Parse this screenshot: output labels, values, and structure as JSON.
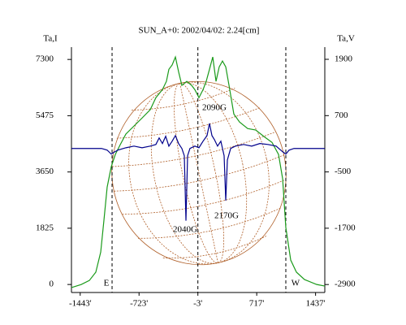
{
  "chart_data": {
    "type": "line",
    "title": "SUN_A+0: 2002/04/02: 2.24[cm]",
    "ylabel": "Ta,I",
    "y2label": "Ta,V",
    "xlim": [
      -1550,
      1550
    ],
    "ylim": [
      -260,
      7700
    ],
    "y2lim": [
      -3070,
      2160
    ],
    "xticks": [
      {
        "value": -1443,
        "label": "-1443'"
      },
      {
        "value": -723,
        "label": "-723'"
      },
      {
        "value": -3,
        "label": "-3'"
      },
      {
        "value": 717,
        "label": "717'"
      },
      {
        "value": 1437,
        "label": "1437'"
      }
    ],
    "yticks": [
      0,
      1825,
      3650,
      5475,
      7300
    ],
    "y2ticks": [
      -2900,
      -1700,
      -500,
      700,
      1900
    ],
    "vlines": [
      -1053,
      -3,
      1073
    ],
    "series": [
      {
        "name": "Ta,I",
        "color": "#1a9a1a",
        "x": [
          -1550,
          -1431,
          -1331,
          -1252,
          -1192,
          -1152,
          -1113,
          -1063,
          -1013,
          -954,
          -884,
          -785,
          -686,
          -586,
          -517,
          -437,
          -388,
          -358,
          -318,
          -278,
          -239,
          -199,
          -139,
          -80,
          -40,
          10,
          60,
          99,
          139,
          179,
          219,
          258,
          298,
          338,
          378,
          437,
          507,
          606,
          705,
          805,
          904,
          984,
          1034,
          1073,
          1133,
          1203,
          1302,
          1451,
          1550
        ],
        "values": [
          -100,
          0,
          130,
          400,
          1050,
          2100,
          3160,
          3820,
          4220,
          4530,
          4880,
          5140,
          5400,
          5670,
          6060,
          6320,
          6590,
          6980,
          7120,
          7380,
          6900,
          6460,
          6590,
          6460,
          6320,
          6060,
          6320,
          6590,
          6980,
          7380,
          6590,
          7060,
          7250,
          7060,
          6460,
          5530,
          5270,
          5060,
          5010,
          4800,
          4610,
          4220,
          3430,
          1850,
          790,
          400,
          160,
          0,
          -50
        ]
      },
      {
        "name": "Ta,V",
        "color": "#00008b",
        "axis": "y2",
        "x": [
          -1550,
          -1182,
          -1113,
          -1063,
          -1033,
          -984,
          -884,
          -785,
          -686,
          -586,
          -517,
          -477,
          -437,
          -397,
          -358,
          -318,
          -278,
          -239,
          -199,
          -169,
          -149,
          -129,
          -100,
          -40,
          10,
          60,
          109,
          139,
          169,
          199,
          238,
          278,
          318,
          338,
          358,
          398,
          457,
          556,
          656,
          755,
          854,
          954,
          1034,
          1073,
          1113,
          1173,
          1550
        ],
        "values": [
          0,
          0,
          -35,
          -120,
          -85,
          -35,
          15,
          50,
          15,
          50,
          85,
          225,
          105,
          260,
          50,
          155,
          275,
          105,
          0,
          -155,
          -1540,
          -155,
          0,
          50,
          15,
          155,
          275,
          535,
          275,
          190,
          50,
          155,
          -155,
          -1110,
          -245,
          0,
          50,
          85,
          50,
          105,
          85,
          50,
          -70,
          -120,
          -35,
          0,
          0
        ]
      }
    ],
    "annotations": [
      "2090G",
      "2040G",
      "2170G",
      "E",
      "W"
    ]
  }
}
